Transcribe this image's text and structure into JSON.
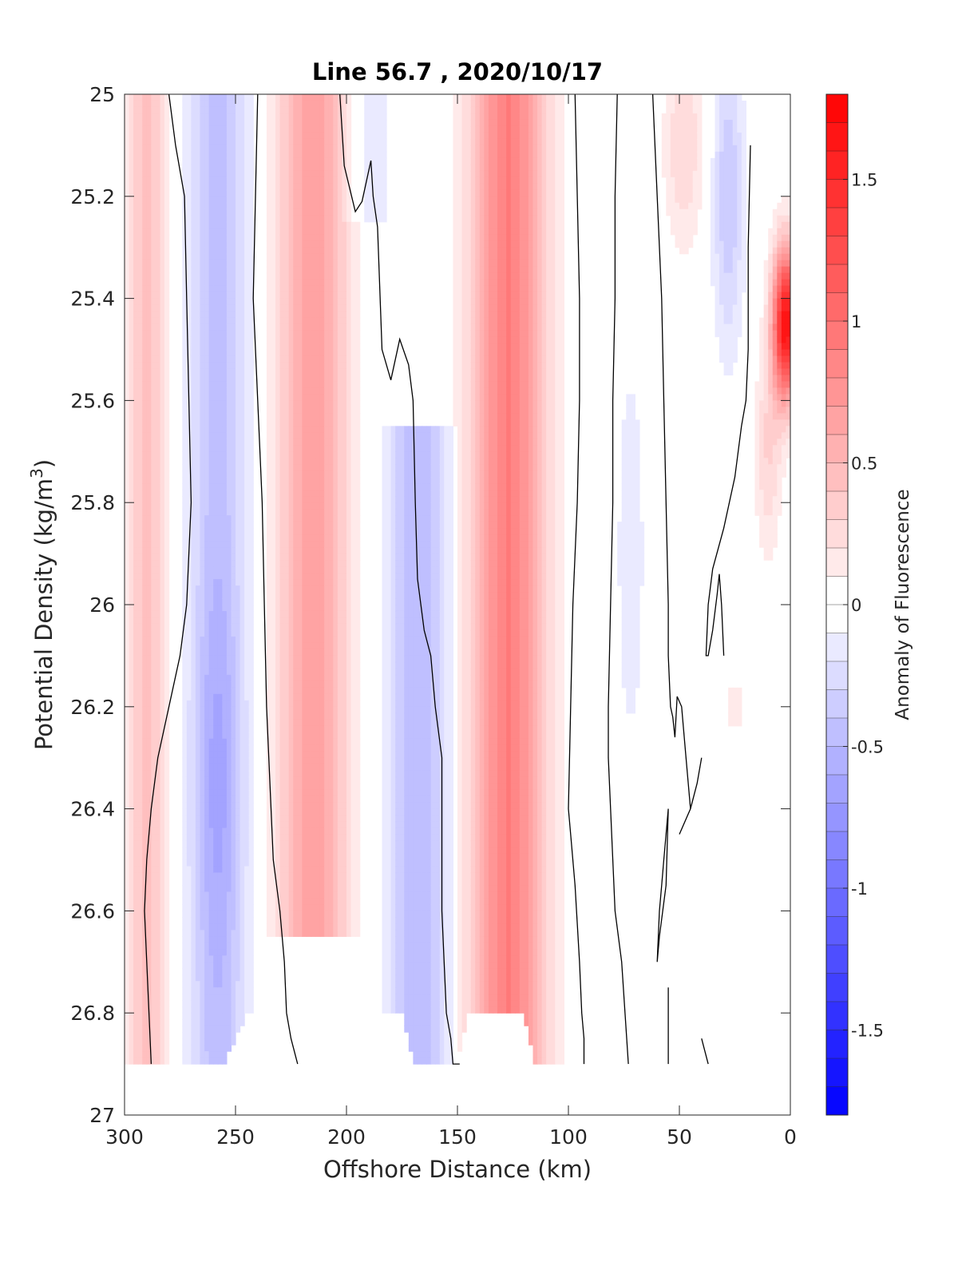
{
  "chart_data": {
    "type": "heatmap",
    "subtype": "filled-contour-section",
    "title": "Line 56.7 , 2020/10/17",
    "xlabel": "Offshore Distance (km)",
    "ylabel_main": "Potential Density (kg/m",
    "ylabel_sup": "3",
    "ylabel_end": ")",
    "colorbar_label": "Anomaly of Fluorescence",
    "xlim": [
      300,
      0
    ],
    "x_reversed": true,
    "ylim": [
      25,
      27
    ],
    "y_reversed": true,
    "clim": [
      -1.8,
      1.8
    ],
    "x_ticks": [
      300,
      250,
      200,
      150,
      100,
      50,
      0
    ],
    "x_tick_labels": [
      "300",
      "250",
      "200",
      "150",
      "100",
      "50",
      "0"
    ],
    "y_ticks": [
      25,
      25.2,
      25.4,
      25.6,
      25.8,
      26,
      26.2,
      26.4,
      26.6,
      26.8,
      27
    ],
    "y_tick_labels": [
      "25",
      "25.2",
      "25.4",
      "25.6",
      "25.8",
      "26",
      "26.2",
      "26.4",
      "26.6",
      "26.8",
      "27"
    ],
    "colorbar_ticks": [
      1.5,
      1,
      0.5,
      0,
      -0.5,
      -1,
      -1.5
    ],
    "colorbar_tick_labels": [
      "1.5",
      "1",
      "0.5",
      "0",
      "-0.5",
      "-1",
      "-1.5"
    ],
    "colormap": {
      "negative": "#0000ff",
      "zero": "#ffffff",
      "positive": "#ff0000",
      "levels": 36
    },
    "grid": false,
    "max_density_by_distance": {
      "x": [
        300,
        288,
        255,
        245,
        175,
        170,
        150,
        145,
        120,
        115,
        95,
        73,
        55,
        40,
        30,
        0
      ],
      "y": [
        26.9,
        26.9,
        26.9,
        26.8,
        26.8,
        26.9,
        26.9,
        26.8,
        26.8,
        26.9,
        26.9,
        26.9,
        26.9,
        26.9,
        26.9,
        26.9
      ]
    },
    "anomaly_features": [
      {
        "type": "band",
        "sign": "positive",
        "x_center": 290,
        "half_width": 9,
        "y_range": [
          25.0,
          26.9
        ],
        "peak": 0.45
      },
      {
        "type": "band",
        "sign": "negative",
        "x_center": 258,
        "half_width": 13,
        "y_range": [
          25.0,
          26.9
        ],
        "peak": -0.45
      },
      {
        "type": "blob",
        "sign": "negative",
        "x_center": 258,
        "y_center": 26.35,
        "half_width": 12,
        "half_height": 0.35,
        "peak": -0.2
      },
      {
        "type": "band",
        "sign": "positive",
        "x_center": 215,
        "half_width": 16,
        "y_range": [
          25.0,
          26.6
        ],
        "peak": 0.7
      },
      {
        "type": "band",
        "sign": "negative",
        "x_center": 190,
        "half_width": 10,
        "y_range": [
          25.0,
          25.2
        ],
        "peak": -0.2
      },
      {
        "type": "band",
        "sign": "negative",
        "x_center": 168,
        "half_width": 14,
        "y_range": [
          25.7,
          26.9
        ],
        "peak": -0.5
      },
      {
        "type": "band",
        "sign": "positive",
        "x_center": 127,
        "half_width": 18,
        "y_range": [
          25.0,
          26.9
        ],
        "peak": 0.9
      },
      {
        "type": "blob",
        "sign": "negative",
        "x_center": 72,
        "y_center": 25.9,
        "half_width": 8,
        "half_height": 0.5,
        "peak": -0.15
      },
      {
        "type": "blob",
        "sign": "positive",
        "x_center": 48,
        "y_center": 25.1,
        "half_width": 9,
        "half_height": 0.2,
        "peak": 0.3
      },
      {
        "type": "blob",
        "sign": "negative",
        "x_center": 28,
        "y_center": 25.2,
        "half_width": 7,
        "half_height": 0.3,
        "peak": -0.4
      },
      {
        "type": "blob",
        "sign": "positive",
        "x_center": 2,
        "y_center": 25.45,
        "half_width": 6,
        "half_height": 0.15,
        "peak": 1.7
      },
      {
        "type": "blob",
        "sign": "positive",
        "x_center": 10,
        "y_center": 25.7,
        "half_width": 6,
        "half_height": 0.2,
        "peak": 0.3
      },
      {
        "type": "blob",
        "sign": "positive",
        "x_center": 25,
        "y_center": 26.2,
        "half_width": 6,
        "half_height": 0.06,
        "peak": 0.15
      }
    ],
    "zero_contours": [
      {
        "x": [
          280,
          277,
          273,
          272,
          271,
          270,
          272,
          275,
          280,
          285,
          288,
          290,
          291,
          289,
          288
        ],
        "y": [
          25.0,
          25.1,
          25.2,
          25.4,
          25.6,
          25.8,
          26.0,
          26.1,
          26.2,
          26.3,
          26.4,
          26.5,
          26.6,
          26.8,
          26.9
        ]
      },
      {
        "x": [
          240,
          241,
          242,
          240,
          238,
          237,
          236,
          235,
          234,
          233,
          230,
          228,
          227,
          225,
          222
        ],
        "y": [
          25.0,
          25.2,
          25.4,
          25.6,
          25.8,
          26.0,
          26.2,
          26.3,
          26.4,
          26.5,
          26.6,
          26.7,
          26.8,
          26.85,
          26.9
        ]
      },
      {
        "x": [
          203,
          201,
          196,
          193,
          189,
          188,
          186,
          184,
          180,
          176,
          172,
          170,
          169,
          168,
          165,
          162,
          160,
          157,
          157,
          157,
          156,
          155,
          153,
          152,
          152,
          150,
          150,
          149
        ],
        "y": [
          25.0,
          25.14,
          25.23,
          25.21,
          25.13,
          25.2,
          25.26,
          25.5,
          25.56,
          25.48,
          25.53,
          25.6,
          25.8,
          25.95,
          26.05,
          26.1,
          26.2,
          26.3,
          26.45,
          26.6,
          26.7,
          26.8,
          26.85,
          26.9,
          26.9,
          26.9,
          26.9,
          26.9
        ]
      },
      {
        "x": [
          97,
          96,
          95,
          95,
          96,
          98,
          99,
          100,
          99,
          97,
          95,
          94,
          93,
          93
        ],
        "y": [
          25.0,
          25.2,
          25.4,
          25.6,
          25.8,
          26.0,
          26.2,
          26.4,
          26.45,
          26.55,
          26.7,
          26.8,
          26.85,
          26.9
        ]
      },
      {
        "x": [
          78,
          79,
          79,
          80,
          80,
          81,
          82,
          82,
          81,
          80,
          79,
          76,
          73
        ],
        "y": [
          25.0,
          25.2,
          25.4,
          25.6,
          25.8,
          26.0,
          26.2,
          26.3,
          26.4,
          26.5,
          26.6,
          26.7,
          26.9
        ]
      },
      {
        "x": [
          62,
          60,
          58,
          57,
          56,
          55,
          55,
          54,
          53,
          52,
          51,
          49,
          47,
          45
        ],
        "y": [
          25.0,
          25.2,
          25.4,
          25.6,
          25.8,
          26.0,
          26.1,
          26.2,
          26.22,
          26.26,
          26.18,
          26.2,
          26.3,
          26.4
        ]
      },
      {
        "x": [
          18,
          19,
          19,
          20,
          22,
          25,
          30,
          35,
          37,
          38,
          37,
          35,
          33,
          32,
          31,
          30
        ],
        "y": [
          25.1,
          25.3,
          25.5,
          25.6,
          25.65,
          25.75,
          25.85,
          25.93,
          26.0,
          26.1,
          26.1,
          26.05,
          25.98,
          25.94,
          26.0,
          26.1
        ]
      },
      {
        "x": [
          40,
          42,
          45,
          50
        ],
        "y": [
          26.3,
          26.35,
          26.4,
          26.45
        ]
      },
      {
        "x": [
          55,
          56,
          57,
          58,
          59,
          60,
          59,
          56,
          55
        ],
        "y": [
          26.4,
          26.45,
          26.5,
          26.55,
          26.6,
          26.7,
          26.65,
          26.55,
          26.4
        ]
      },
      {
        "x": [
          55,
          55
        ],
        "y": [
          26.75,
          26.9
        ]
      },
      {
        "x": [
          40,
          37
        ],
        "y": [
          26.85,
          26.9
        ]
      }
    ]
  }
}
